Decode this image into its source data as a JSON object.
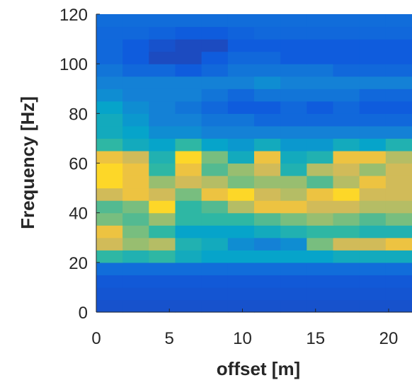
{
  "chart_data": {
    "type": "heatmap",
    "xlabel": "offset [m]",
    "ylabel": "Frequency [Hz]",
    "colormap": "parula",
    "xlim": [
      0,
      21.6
    ],
    "ylim": [
      0,
      120
    ],
    "xticks": [
      0,
      5,
      10,
      15,
      20
    ],
    "yticks": [
      0,
      20,
      40,
      60,
      80,
      100,
      120
    ],
    "xbins": [
      0,
      1.8,
      3.6,
      5.4,
      7.2,
      9,
      10.8,
      12.6,
      14.4,
      16.2,
      18,
      19.8,
      21.6
    ],
    "ybins": [
      0,
      5,
      10,
      15,
      20,
      25,
      30,
      35,
      40,
      45,
      50,
      55,
      60,
      65,
      70,
      75,
      80,
      85,
      90,
      95,
      100,
      105,
      110,
      115,
      120
    ],
    "z": [
      [
        0.12,
        0.12,
        0.12,
        0.12,
        0.12,
        0.12,
        0.12,
        0.12,
        0.12,
        0.12,
        0.12,
        0.12
      ],
      [
        0.13,
        0.13,
        0.13,
        0.13,
        0.13,
        0.13,
        0.13,
        0.13,
        0.13,
        0.13,
        0.13,
        0.13
      ],
      [
        0.14,
        0.14,
        0.14,
        0.14,
        0.14,
        0.14,
        0.14,
        0.14,
        0.14,
        0.14,
        0.14,
        0.14
      ],
      [
        0.22,
        0.22,
        0.22,
        0.22,
        0.22,
        0.22,
        0.22,
        0.22,
        0.22,
        0.22,
        0.22,
        0.22
      ],
      [
        0.6,
        0.55,
        0.6,
        0.5,
        0.45,
        0.45,
        0.45,
        0.45,
        0.45,
        0.5,
        0.5,
        0.5
      ],
      [
        0.85,
        0.75,
        0.8,
        0.55,
        0.5,
        0.35,
        0.3,
        0.35,
        0.7,
        0.85,
        0.85,
        0.9
      ],
      [
        0.9,
        0.7,
        0.6,
        0.45,
        0.45,
        0.45,
        0.5,
        0.55,
        0.6,
        0.6,
        0.55,
        0.55
      ],
      [
        0.7,
        0.65,
        0.75,
        0.6,
        0.6,
        0.6,
        0.65,
        0.7,
        0.75,
        0.7,
        0.65,
        0.7
      ],
      [
        0.65,
        0.7,
        0.95,
        0.6,
        0.65,
        0.8,
        0.9,
        0.9,
        0.85,
        0.85,
        0.8,
        0.8
      ],
      [
        0.85,
        0.9,
        0.85,
        0.7,
        0.9,
        0.95,
        0.85,
        0.8,
        0.9,
        0.95,
        0.85,
        0.85
      ],
      [
        0.95,
        0.9,
        0.75,
        0.85,
        0.8,
        0.7,
        0.75,
        0.75,
        0.65,
        0.8,
        0.9,
        0.85
      ],
      [
        0.95,
        0.9,
        0.6,
        0.9,
        0.65,
        0.75,
        0.85,
        0.55,
        0.8,
        0.85,
        0.75,
        0.85
      ],
      [
        0.9,
        0.85,
        0.55,
        0.95,
        0.7,
        0.5,
        0.9,
        0.5,
        0.55,
        0.9,
        0.9,
        0.8
      ],
      [
        0.6,
        0.5,
        0.45,
        0.6,
        0.45,
        0.4,
        0.5,
        0.4,
        0.4,
        0.5,
        0.45,
        0.55
      ],
      [
        0.5,
        0.45,
        0.35,
        0.35,
        0.3,
        0.3,
        0.3,
        0.3,
        0.3,
        0.3,
        0.3,
        0.3
      ],
      [
        0.5,
        0.4,
        0.3,
        0.3,
        0.25,
        0.25,
        0.2,
        0.2,
        0.2,
        0.2,
        0.2,
        0.2
      ],
      [
        0.45,
        0.35,
        0.3,
        0.25,
        0.2,
        0.15,
        0.15,
        0.2,
        0.15,
        0.2,
        0.15,
        0.15
      ],
      [
        0.35,
        0.3,
        0.3,
        0.3,
        0.25,
        0.2,
        0.25,
        0.25,
        0.25,
        0.25,
        0.2,
        0.2
      ],
      [
        0.3,
        0.3,
        0.3,
        0.3,
        0.3,
        0.3,
        0.35,
        0.3,
        0.3,
        0.3,
        0.3,
        0.3
      ],
      [
        0.25,
        0.2,
        0.2,
        0.15,
        0.2,
        0.25,
        0.25,
        0.25,
        0.25,
        0.2,
        0.2,
        0.2
      ],
      [
        0.2,
        0.15,
        0.1,
        0.1,
        0.15,
        0.2,
        0.2,
        0.15,
        0.15,
        0.15,
        0.15,
        0.15
      ],
      [
        0.2,
        0.15,
        0.12,
        0.1,
        0.1,
        0.15,
        0.15,
        0.15,
        0.15,
        0.15,
        0.15,
        0.15
      ],
      [
        0.2,
        0.2,
        0.18,
        0.15,
        0.15,
        0.18,
        0.2,
        0.2,
        0.2,
        0.2,
        0.2,
        0.2
      ],
      [
        0.22,
        0.22,
        0.22,
        0.22,
        0.22,
        0.22,
        0.22,
        0.22,
        0.22,
        0.22,
        0.22,
        0.22
      ]
    ]
  }
}
